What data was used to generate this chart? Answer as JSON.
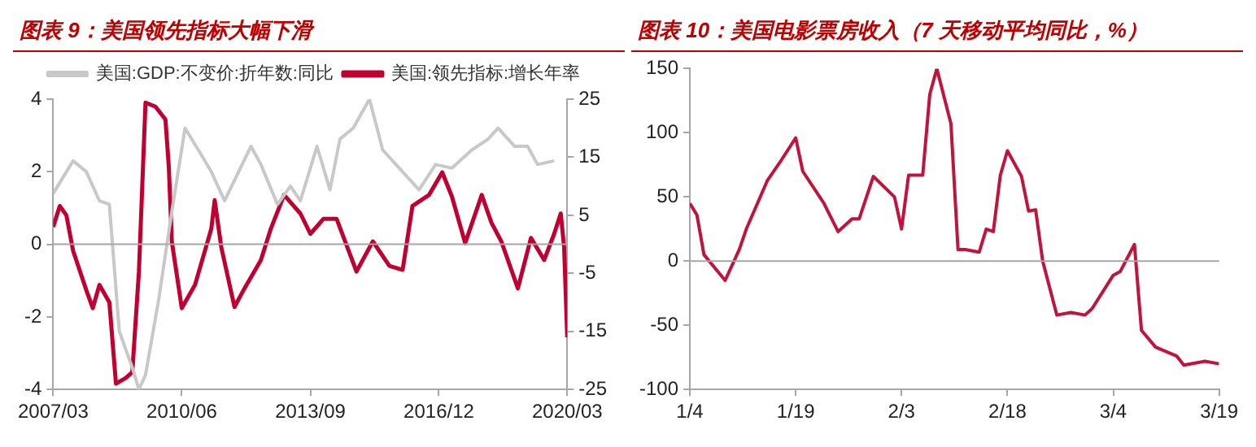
{
  "chart_data": [
    {
      "type": "line",
      "title": "图表 9：美国领先指标大幅下滑",
      "xlim": [
        "2007-03",
        "2020-03"
      ],
      "xticks": [
        {
          "value": "2007-03",
          "label": "2007/03"
        },
        {
          "value": "2010-06",
          "label": "2010/06"
        },
        {
          "value": "2013-09",
          "label": "2013/09"
        },
        {
          "value": "2016-12",
          "label": "2016/12"
        },
        {
          "value": "2020-03",
          "label": "2020/03"
        }
      ],
      "ylim": [
        -4,
        4
      ],
      "yticks": [
        -4,
        -2,
        0,
        2,
        4
      ],
      "y2lim": [
        -25,
        25
      ],
      "y2ticks": [
        -25,
        -15,
        -5,
        5,
        15,
        25
      ],
      "grid": false,
      "legend": "top",
      "ref_lines": [
        {
          "axis": "y",
          "value": 0,
          "color": "#a6a6a6"
        }
      ],
      "series": [
        {
          "name": "美国:GDP:不变价:折年数:同比",
          "color": "#c8c8c8",
          "x": [
            "2007-03",
            "2007-09",
            "2008-01",
            "2008-05",
            "2008-08",
            "2008-11",
            "2009-03",
            "2009-05",
            "2009-07",
            "2009-11",
            "2010-03",
            "2010-07",
            "2010-11",
            "2011-03",
            "2011-07",
            "2012-03",
            "2012-06",
            "2012-11",
            "2013-03",
            "2013-06",
            "2013-11",
            "2014-03",
            "2014-06",
            "2014-10",
            "2015-03",
            "2015-07",
            "2016-01",
            "2016-06",
            "2016-11",
            "2017-04",
            "2017-10",
            "2018-03",
            "2018-06",
            "2018-11",
            "2019-03",
            "2019-06",
            "2019-11"
          ],
          "values": [
            1.4,
            2.3,
            2.0,
            1.2,
            1.1,
            -2.4,
            -3.4,
            -4.0,
            -3.6,
            -1.5,
            0.9,
            3.2,
            2.6,
            2.0,
            1.2,
            2.7,
            2.2,
            1.1,
            1.6,
            1.2,
            2.7,
            1.5,
            2.9,
            3.2,
            4.0,
            2.6,
            2.0,
            1.5,
            2.2,
            2.1,
            2.6,
            2.9,
            3.2,
            2.7,
            2.7,
            2.2,
            2.3
          ]
        },
        {
          "name": "美国:领先指标:增长年率",
          "color": "#c00030",
          "axis": "y2",
          "x": [
            "2007-03",
            "2007-05",
            "2007-07",
            "2007-09",
            "2008-01",
            "2008-03",
            "2008-05",
            "2008-08",
            "2008-10",
            "2009-01",
            "2009-03",
            "2009-05",
            "2009-07",
            "2009-10",
            "2010-01",
            "2010-02",
            "2010-03",
            "2010-06",
            "2010-10",
            "2011-03",
            "2011-04",
            "2011-06",
            "2011-10",
            "2012-01",
            "2012-06",
            "2012-09",
            "2013-01",
            "2013-06",
            "2013-09",
            "2014-01",
            "2014-05",
            "2014-11",
            "2015-04",
            "2015-09",
            "2016-01",
            "2016-04",
            "2016-09",
            "2017-01",
            "2017-04",
            "2017-08",
            "2018-01",
            "2018-04",
            "2018-07",
            "2018-12",
            "2019-04",
            "2019-08",
            "2019-11",
            "2020-01",
            "2020-02",
            "2020-03"
          ],
          "values": [
            3,
            6.6,
            5,
            -1.1,
            -7.9,
            -11,
            -7,
            -10,
            -24,
            -23,
            -22,
            -4.7,
            24.4,
            23.7,
            21.5,
            13.4,
            0.5,
            -11,
            -7,
            2.7,
            7.6,
            -0.5,
            -10.8,
            -7.6,
            -2.7,
            2.7,
            8.5,
            5.3,
            1.8,
            4.4,
            4.4,
            -4.7,
            0.5,
            -3.7,
            -4.4,
            6.6,
            8.5,
            12.4,
            8.2,
            0.2,
            8.5,
            3.7,
            0.5,
            -7.6,
            1.1,
            -2.7,
            1.8,
            5.3,
            -0.5,
            -16
          ]
        }
      ]
    },
    {
      "type": "line",
      "title": "图表 10：美国电影票房收入（7 天移动平均同比，%）",
      "xlim": [
        "--01-04",
        "--03-19"
      ],
      "xticks": [
        {
          "value": "--01-04",
          "label": "1/4"
        },
        {
          "value": "--01-19",
          "label": "1/19"
        },
        {
          "value": "--02-03",
          "label": "2/3"
        },
        {
          "value": "--02-18",
          "label": "2/18"
        },
        {
          "value": "--03-04",
          "label": "3/4"
        },
        {
          "value": "--03-19",
          "label": "3/19"
        }
      ],
      "ylim": [
        -100,
        150
      ],
      "yticks": [
        -100,
        -50,
        0,
        50,
        100,
        150
      ],
      "grid": false,
      "ref_lines": [
        {
          "axis": "y",
          "value": 0,
          "color": "#a6a6a6"
        }
      ],
      "series": [
        {
          "color": "#c0143c",
          "x": [
            "--01-04",
            "--01-05",
            "--01-06",
            "--01-09",
            "--01-11",
            "--01-12",
            "--01-15",
            "--01-17",
            "--01-19",
            "--01-20",
            "--01-23",
            "--01-25",
            "--01-27",
            "--01-28",
            "--01-30",
            "--02-02",
            "--02-03",
            "--02-04",
            "--02-06",
            "--02-07",
            "--02-08",
            "--02-10",
            "--02-11",
            "--02-12",
            "--02-14",
            "--02-15",
            "--02-16",
            "--02-17",
            "--02-18",
            "--02-20",
            "--02-21",
            "--02-22",
            "--02-23",
            "--02-25",
            "--02-27",
            "--02-29",
            "--03-01",
            "--03-04",
            "--03-05",
            "--03-07",
            "--03-08",
            "--03-10",
            "--03-13",
            "--03-14",
            "--03-17",
            "--03-19"
          ],
          "values": [
            45,
            36,
            5,
            -15,
            9,
            25,
            63,
            79,
            96,
            70,
            45,
            23,
            33,
            33,
            66,
            50,
            25,
            67,
            67,
            130,
            150,
            107,
            9,
            9,
            7,
            25,
            23,
            67,
            86,
            66,
            39,
            40,
            0,
            -42,
            -40,
            -42,
            -37,
            -11,
            -8,
            13,
            -54,
            -67,
            -74,
            -81,
            -78,
            -80
          ]
        }
      ]
    }
  ]
}
